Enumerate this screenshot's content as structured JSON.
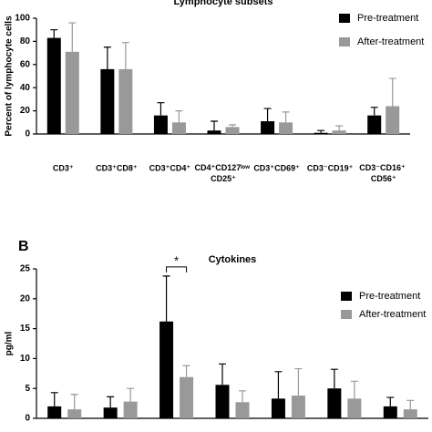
{
  "chart_data": [
    {
      "type": "bar",
      "title": "Lymphocyte subsets",
      "ylabel": "Percent of lymphocyte cells",
      "categories": [
        "CD3⁺",
        "CD3⁺CD8⁺",
        "CD3⁺CD4⁺",
        "CD4⁺CD127ˡᵒʷ\nCD25⁺",
        "CD3⁺CD69⁺",
        "CD3⁻CD19⁺",
        "CD3⁻CD16⁺\nCD56⁺"
      ],
      "series": [
        {
          "name": "Pre-treatment",
          "color": "#000000",
          "values": [
            83,
            56,
            16,
            3,
            11,
            1,
            16
          ],
          "errors": [
            7,
            19,
            11,
            8,
            11,
            2,
            7
          ]
        },
        {
          "name": "After-treatment",
          "color": "#999999",
          "values": [
            71,
            56,
            10,
            6,
            10,
            3,
            24
          ],
          "errors": [
            25,
            23,
            10,
            2,
            9,
            4,
            24
          ]
        }
      ],
      "ylim": [
        0,
        100
      ],
      "yticks": [
        0,
        20,
        40,
        60,
        80,
        100
      ],
      "legend": "upper right"
    },
    {
      "type": "bar",
      "panel_label": "B",
      "title": "Cytokines",
      "ylabel": "pg/ml",
      "categories": [
        null,
        null,
        null,
        null,
        null,
        null,
        null
      ],
      "series": [
        {
          "name": "Pre-treatment",
          "color": "#000000",
          "values": [
            2,
            1.8,
            16.2,
            5.6,
            3.3,
            5,
            2
          ],
          "errors": [
            2.3,
            1.8,
            7.6,
            3.5,
            4.5,
            3.2,
            1.5
          ]
        },
        {
          "name": "After-treatment",
          "color": "#999999",
          "values": [
            1.5,
            2.8,
            6.9,
            2.7,
            3.8,
            3.3,
            1.5
          ],
          "errors": [
            2.5,
            2.2,
            1.9,
            1.9,
            4.5,
            2.9,
            1.5
          ]
        }
      ],
      "annotation": "*",
      "ylim": [
        0,
        25
      ],
      "yticks": [
        0,
        5,
        10,
        15,
        20,
        25
      ],
      "legend": "upper right"
    }
  ]
}
